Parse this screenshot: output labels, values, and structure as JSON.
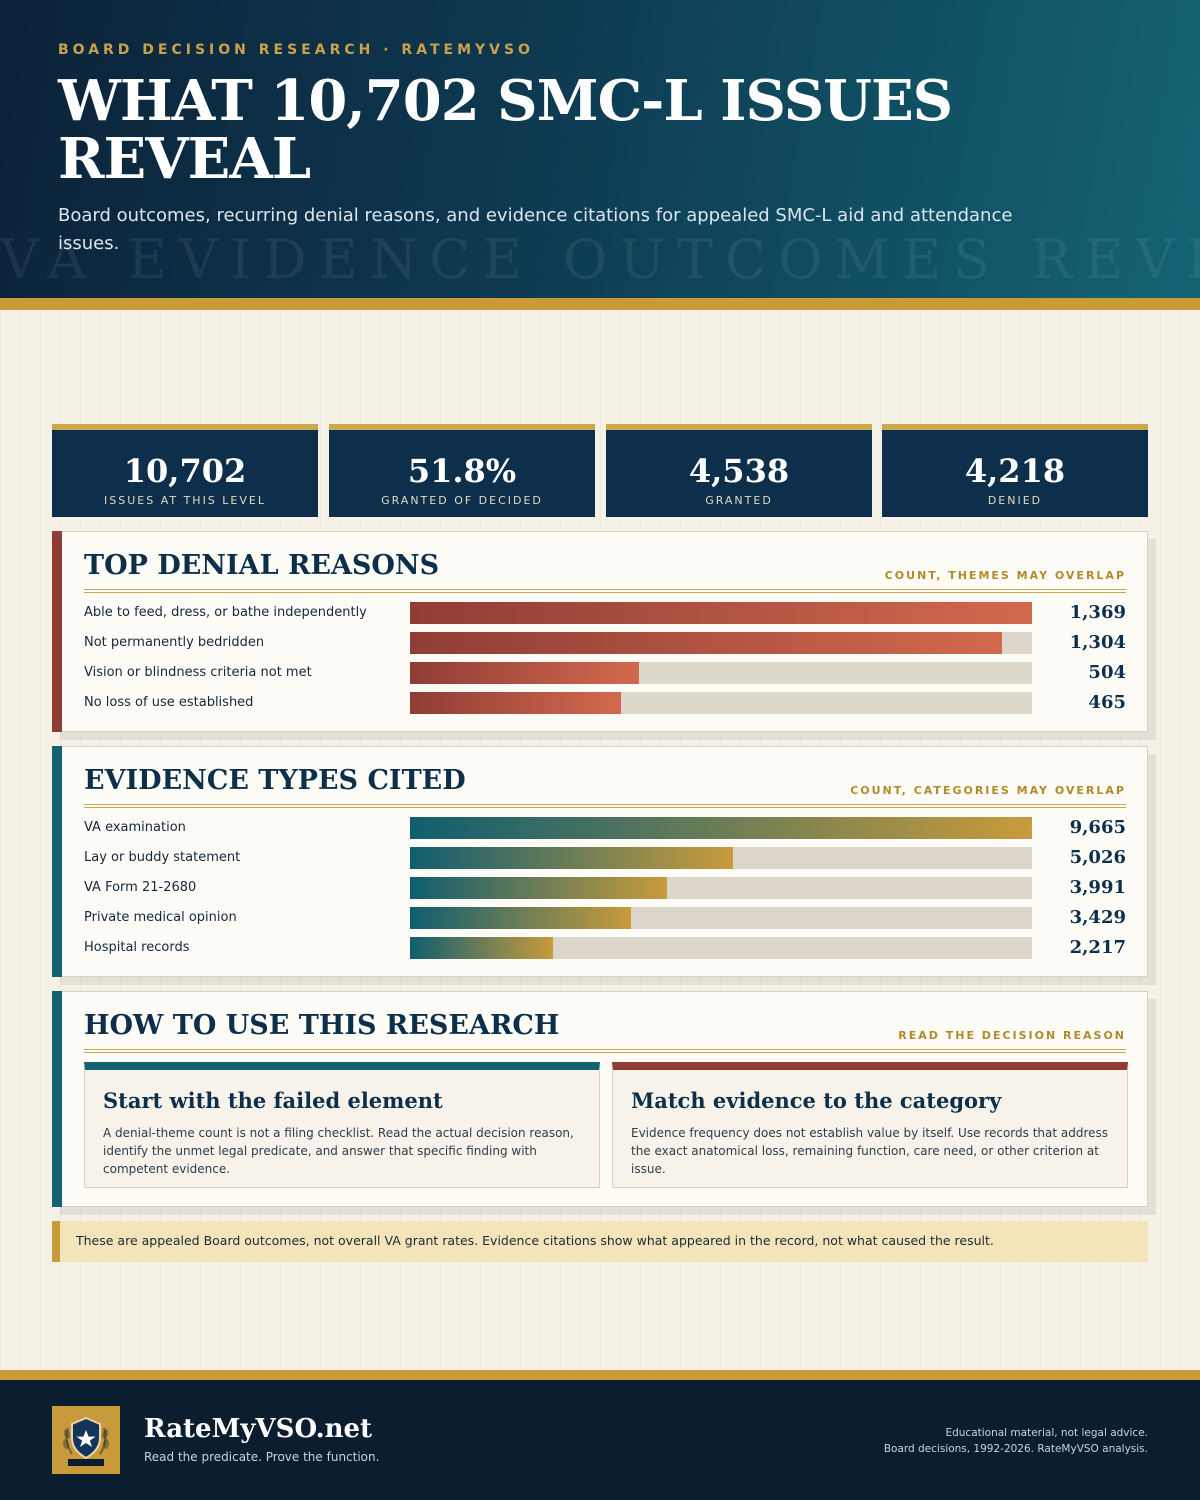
{
  "header": {
    "eyebrow": "BOARD DECISION RESEARCH · RATEMYVSO",
    "title": "WHAT 10,702 SMC-L ISSUES REVEAL",
    "subtitle": "Board outcomes, recurring denial reasons, and evidence citations for appealed SMC-L aid and attendance issues.",
    "watermark": "VA EVIDENCE OUTCOMES REVIEW"
  },
  "stats": [
    {
      "value": "10,702",
      "label": "ISSUES AT THIS LEVEL"
    },
    {
      "value": "51.8%",
      "label": "GRANTED OF DECIDED"
    },
    {
      "value": "4,538",
      "label": "GRANTED"
    },
    {
      "value": "4,218",
      "label": "DENIED"
    }
  ],
  "denials": {
    "title": "TOP DENIAL REASONS",
    "note": "COUNT, THEMES MAY OVERLAP"
  },
  "evidence": {
    "title": "EVIDENCE TYPES CITED",
    "note": "COUNT, CATEGORIES MAY OVERLAP"
  },
  "chart_data": [
    {
      "type": "bar",
      "orientation": "horizontal",
      "title": "TOP DENIAL REASONS",
      "categories": [
        "Able to feed, dress, or bathe independently",
        "Not permanently bedridden",
        "Vision or blindness criteria not met",
        "No loss of use established"
      ],
      "values": [
        1369,
        1304,
        504,
        465
      ],
      "value_labels": [
        "1,369",
        "1,304",
        "504",
        "465"
      ],
      "xlim": [
        0,
        1369
      ],
      "grid": false,
      "color": "#c0584a"
    },
    {
      "type": "bar",
      "orientation": "horizontal",
      "title": "EVIDENCE TYPES CITED",
      "categories": [
        "VA examination",
        "Lay or buddy statement",
        "VA Form 21-2680",
        "Private medical opinion",
        "Hospital records"
      ],
      "values": [
        9665,
        5026,
        3991,
        3429,
        2217
      ],
      "value_labels": [
        "9,665",
        "5,026",
        "3,991",
        "3,429",
        "2,217"
      ],
      "xlim": [
        0,
        9665
      ],
      "grid": false,
      "color": "#1a6a78"
    }
  ],
  "howto": {
    "title": "HOW TO USE THIS RESEARCH",
    "note": "READ THE DECISION REASON",
    "cards": [
      {
        "title": "Start with the failed element",
        "body": "A denial-theme count is not a filing checklist. Read the actual decision reason, identify the unmet legal predicate, and answer that specific finding with competent evidence.",
        "accent": "#136373"
      },
      {
        "title": "Match evidence to the category",
        "body": "Evidence frequency does not establish value by itself. Use records that address the exact anatomical loss, remaining function, care need, or other criterion at issue.",
        "accent": "#8f3d35"
      }
    ]
  },
  "notice": "These are appealed Board outcomes, not overall VA grant rates. Evidence citations show what appeared in the record, not what caused the result.",
  "footer": {
    "brand": "RateMyVSO.net",
    "tagline": "Read the predicate. Prove the function.",
    "disclaimer_1": "Educational material, not legal advice.",
    "disclaimer_2": "Board decisions, 1992-2026. RateMyVSO analysis."
  },
  "colors": {
    "navy": "#0d2f4b",
    "gold": "#c99a3a",
    "denial_accent": "#8f3d35",
    "evidence_accent": "#136373"
  },
  "icons": {
    "logo": "star-shield-laurel-icon"
  }
}
